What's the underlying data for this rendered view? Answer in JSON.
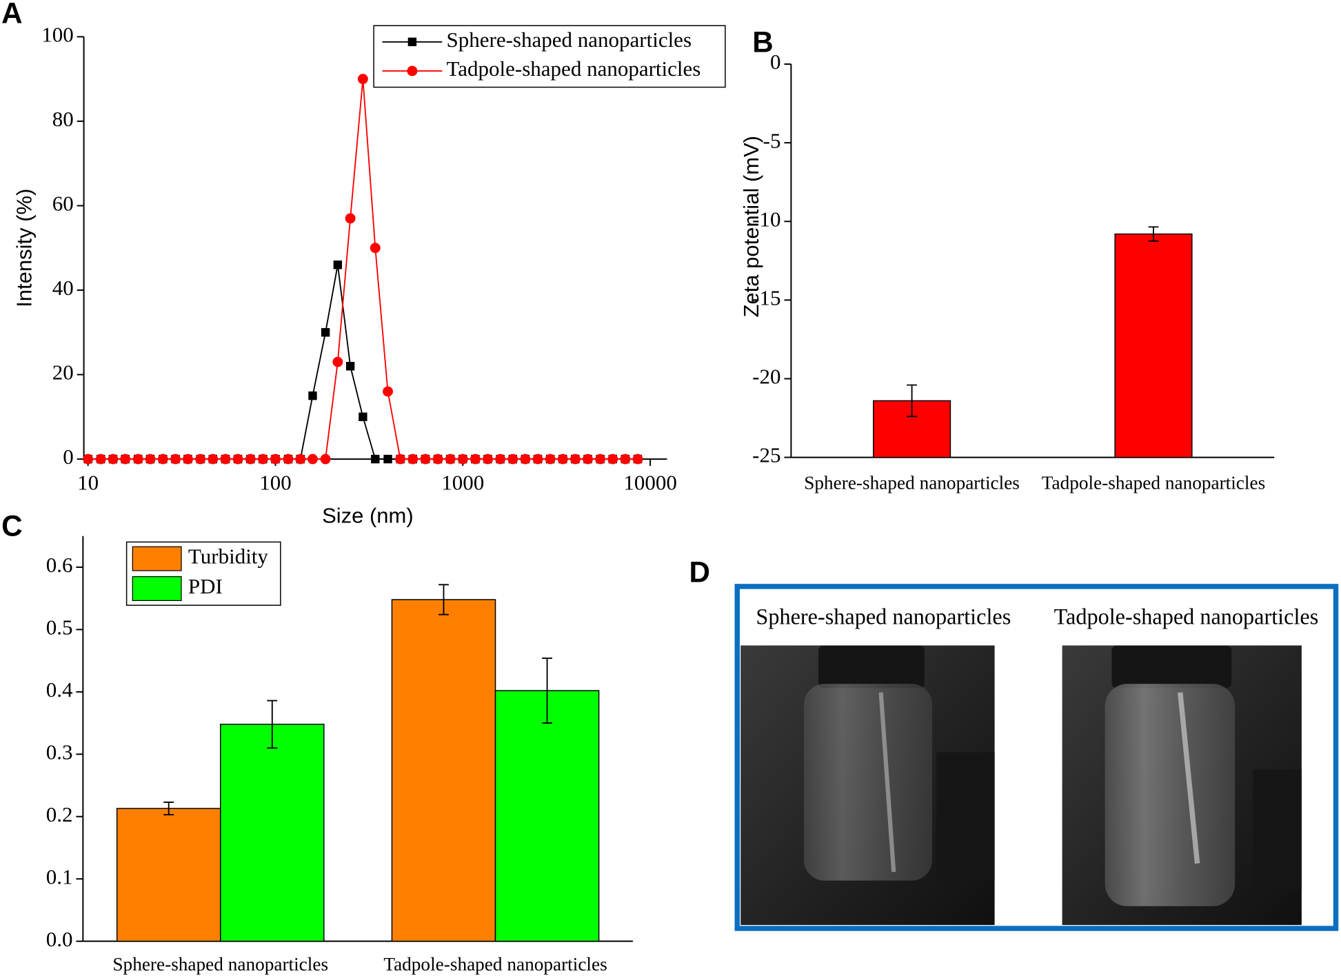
{
  "chart_data": [
    {
      "type": "line",
      "label": "A",
      "xscale": "log",
      "x": [
        10,
        11.7,
        13.6,
        15.8,
        18.5,
        21.5,
        25.1,
        29.3,
        34.1,
        39.8,
        46.4,
        54.1,
        63.1,
        73.6,
        85.8,
        100,
        117,
        136,
        158,
        185,
        215,
        251,
        293,
        341,
        398,
        464,
        541,
        631,
        736,
        858,
        1000,
        1166,
        1359,
        1585,
        1848,
        2154,
        2512,
        2929,
        3415,
        3981,
        4642,
        5412,
        6310,
        7356,
        8577
      ],
      "series": [
        {
          "name": "Sphere-shaped nanoparticles",
          "color": "#000000",
          "marker": "square",
          "values": [
            0,
            0,
            0,
            0,
            0,
            0,
            0,
            0,
            0,
            0,
            0,
            0,
            0,
            0,
            0,
            0,
            0,
            0,
            15,
            30,
            46,
            22,
            10,
            0,
            0,
            0,
            0,
            0,
            0,
            0,
            0,
            0,
            0,
            0,
            0,
            0,
            0,
            0,
            0,
            0,
            0,
            0,
            0,
            0,
            0
          ]
        },
        {
          "name": "Tadpole-shaped nanoparticles",
          "color": "#ff0000",
          "marker": "circle",
          "values": [
            0,
            0,
            0,
            0,
            0,
            0,
            0,
            0,
            0,
            0,
            0,
            0,
            0,
            0,
            0,
            0,
            0,
            0,
            0,
            0,
            23,
            57,
            90,
            50,
            16,
            0,
            0,
            0,
            0,
            0,
            0,
            0,
            0,
            0,
            0,
            0,
            0,
            0,
            0,
            0,
            0,
            0,
            0,
            0,
            0
          ]
        }
      ],
      "xlim": [
        9.5,
        12300
      ],
      "xticks": [
        10,
        100,
        1000,
        10000
      ],
      "ylim": [
        0,
        100
      ],
      "yticks": [
        0,
        20,
        40,
        60,
        80,
        100
      ],
      "x_label": "Size (nm)",
      "y_label": "Intensity (%)",
      "legend": "upper right"
    },
    {
      "type": "bar",
      "label": "B",
      "categories": [
        "Sphere-shaped nanoparticles",
        "Tadpole-shaped nanoparticles"
      ],
      "values": [
        -21.4,
        -10.8
      ],
      "errors": [
        1.0,
        0.45
      ],
      "color": "#ff0000",
      "ylim": [
        -25,
        0
      ],
      "yticks": [
        -25,
        -20,
        -15,
        -10,
        -5,
        0
      ],
      "y_label": "Zeta potential (mV)"
    },
    {
      "type": "bar",
      "label": "C",
      "categories": [
        "Sphere-shaped nanoparticles",
        "Tadpole-shaped nanoparticles"
      ],
      "series": [
        {
          "name": "Turbidity",
          "color": "#ff8000",
          "values": [
            0.213,
            0.548
          ],
          "errors": [
            0.01,
            0.024
          ]
        },
        {
          "name": "PDI",
          "color": "#00ff00",
          "values": [
            0.348,
            0.402
          ],
          "errors": [
            0.038,
            0.052
          ]
        }
      ],
      "ylim": [
        0,
        0.65
      ],
      "yticks": [
        {
          "value": 0,
          "label": "0.0"
        },
        0.1,
        0.2,
        0.3,
        0.4,
        0.5,
        0.6
      ],
      "legend": "upper left"
    }
  ],
  "panel_d": {
    "label": "D",
    "captions": [
      "Sphere-shaped nanoparticles",
      "Tadpole-shaped nanoparticles"
    ]
  }
}
